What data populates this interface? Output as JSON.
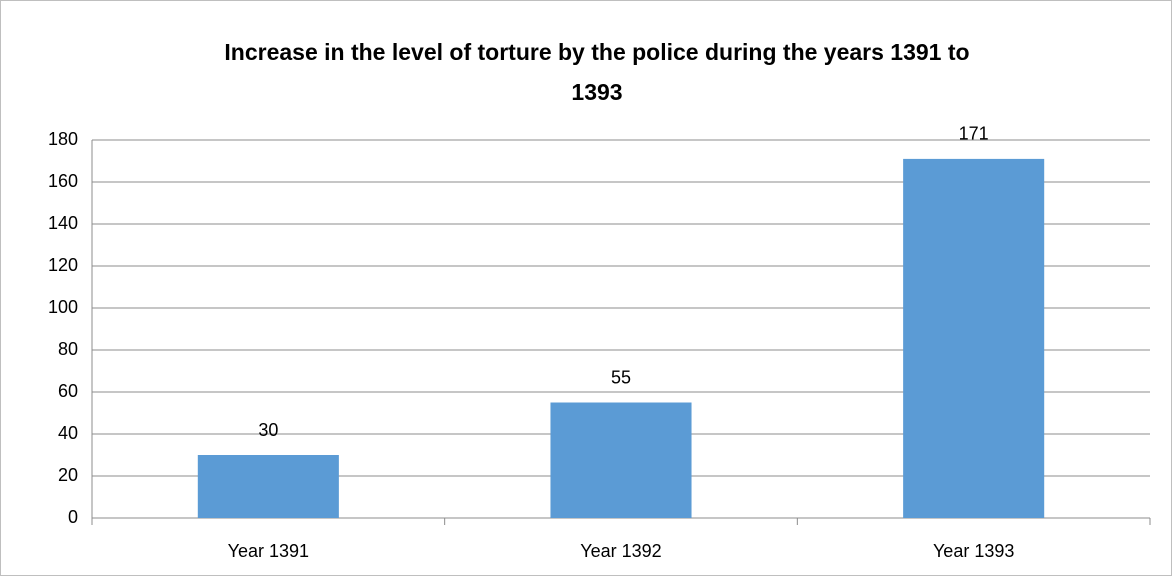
{
  "chart_data": {
    "type": "bar",
    "title": "Increase in the level of torture by the police during the years 1391 to 1393",
    "categories": [
      "Year 1391",
      "Year 1392",
      "Year 1393"
    ],
    "values": [
      30,
      55,
      171
    ],
    "color": "#5b9bd5",
    "ylim": [
      0,
      180
    ],
    "yticks": [
      0,
      20,
      40,
      60,
      80,
      100,
      120,
      140,
      160,
      180
    ],
    "grid": true
  }
}
